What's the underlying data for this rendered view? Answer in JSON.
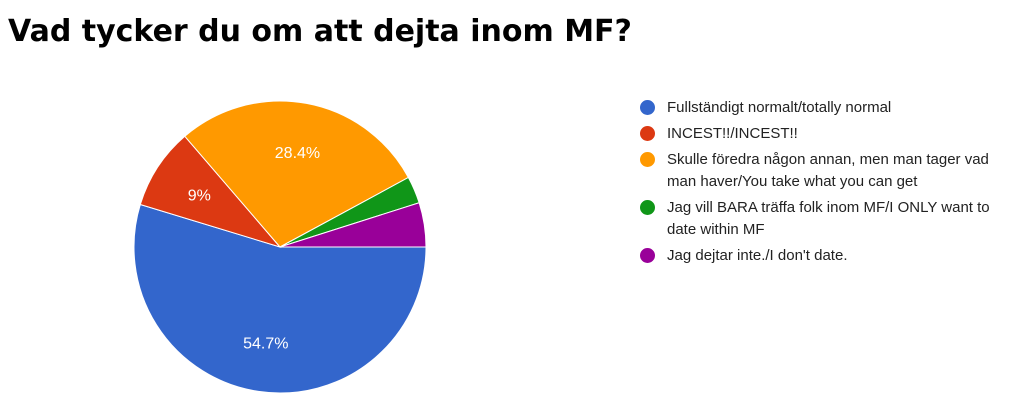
{
  "title": "Vad tycker du om att dejta inom MF?",
  "chart_data": {
    "type": "pie",
    "title": "Vad tycker du om att dejta inom MF?",
    "legend_position": "right",
    "start_angle": "3 o'clock, clockwise",
    "slices": [
      {
        "label": "Fullständigt normalt/totally normal",
        "value": 54.7,
        "display": "54.7%",
        "color": "#3366cc"
      },
      {
        "label": "INCEST!!/INCEST!!",
        "value": 9,
        "display": "9%",
        "color": "#dc3912"
      },
      {
        "label": "Skulle föredra någon annan, men man tager vad man haver/You take what you can get",
        "value": 28.4,
        "display": "28.4%",
        "color": "#ff9900"
      },
      {
        "label": "Jag vill BARA träffa folk inom MF/I ONLY want to date within MF",
        "value": 3.0,
        "display": "",
        "color": "#109618"
      },
      {
        "label": "Jag dejtar inte./I don't date.",
        "value": 4.9,
        "display": "",
        "color": "#990099"
      }
    ]
  }
}
